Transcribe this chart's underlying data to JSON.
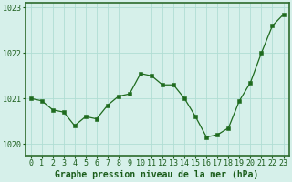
{
  "x": [
    0,
    1,
    2,
    3,
    4,
    5,
    6,
    7,
    8,
    9,
    10,
    11,
    12,
    13,
    14,
    15,
    16,
    17,
    18,
    19,
    20,
    21,
    22,
    23
  ],
  "y": [
    1021.0,
    1020.95,
    1020.75,
    1020.7,
    1020.4,
    1020.6,
    1020.55,
    1020.85,
    1021.05,
    1021.1,
    1021.55,
    1021.5,
    1021.3,
    1021.3,
    1021.0,
    1020.6,
    1020.15,
    1020.2,
    1020.35,
    1020.95,
    1021.35,
    1022.0,
    1022.6,
    1022.85
  ],
  "line_color": "#1f6b1f",
  "marker_color": "#1f6b1f",
  "bg_color": "#d6f0ea",
  "grid_color": "#b0ddd4",
  "fig_bg": "#d6f0ea",
  "spine_color": "#2d6b2d",
  "xlabel": "Graphe pression niveau de la mer (hPa)",
  "ylim": [
    1019.75,
    1023.1
  ],
  "yticks": [
    1020,
    1021,
    1022,
    1023
  ],
  "xticks": [
    0,
    1,
    2,
    3,
    4,
    5,
    6,
    7,
    8,
    9,
    10,
    11,
    12,
    13,
    14,
    15,
    16,
    17,
    18,
    19,
    20,
    21,
    22,
    23
  ],
  "xlabel_color": "#1a5c1a",
  "tick_color": "#1a5c1a",
  "xlabel_fontsize": 7.0,
  "tick_fontsize": 6.0,
  "linewidth": 0.9,
  "markersize": 2.2
}
